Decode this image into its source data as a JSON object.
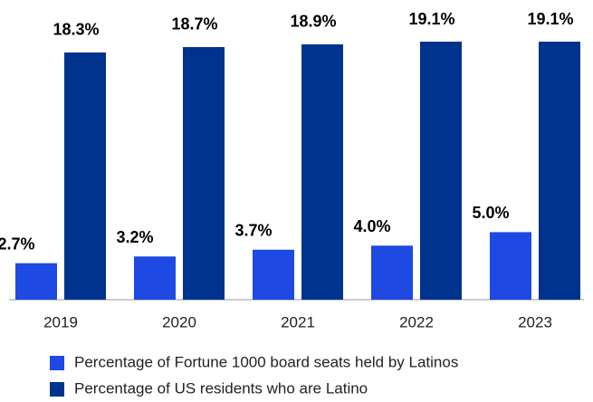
{
  "chart_data": {
    "type": "bar",
    "categories": [
      "2019",
      "2020",
      "2021",
      "2022",
      "2023"
    ],
    "series": [
      {
        "name": "Percentage of Fortune 1000 board seats held by Latinos",
        "color": "#1e49e2",
        "values": [
          2.7,
          3.2,
          3.7,
          4.0,
          5.0
        ],
        "value_labels": [
          "2.7%",
          "3.2%",
          "3.7%",
          "4.0%",
          "5.0%"
        ]
      },
      {
        "name": "Percentage of US residents who are Latino",
        "color": "#00338d",
        "values": [
          18.3,
          18.7,
          18.9,
          19.1,
          19.1
        ],
        "value_labels": [
          "18.3%",
          "18.7%",
          "18.9%",
          "19.1%",
          "19.1%"
        ]
      }
    ]
  }
}
